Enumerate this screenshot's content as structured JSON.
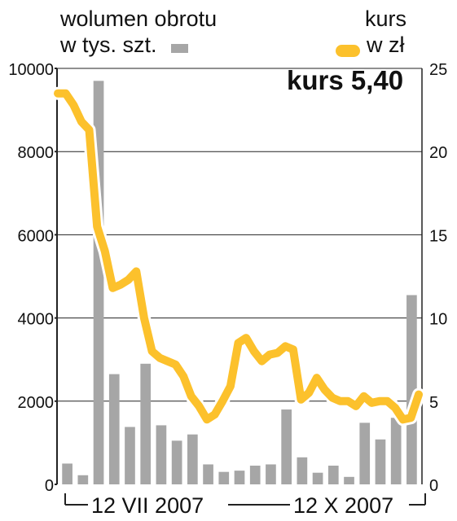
{
  "legend": {
    "volume_line1": "wolumen obrotu",
    "volume_line2": "w tys. szt.",
    "price_line1": "kurs",
    "price_line2": "w zł"
  },
  "current_price_label": "kurs 5,40",
  "chart_data": {
    "type": "bar+line",
    "left_axis": {
      "label": "wolumen obrotu w tys. szt.",
      "ticks": [
        "0",
        "2000",
        "4000",
        "6000",
        "8000",
        "10000"
      ],
      "range": [
        0,
        10000
      ]
    },
    "right_axis": {
      "label": "kurs w zł",
      "ticks": [
        "0",
        "5",
        "10",
        "15",
        "20",
        "25"
      ],
      "range": [
        0,
        25
      ]
    },
    "x_labels": [
      "12 VII 2007",
      "12 X 2007"
    ],
    "grid": "horizontal",
    "volume_series": {
      "name": "wolumen obrotu",
      "color": "#a6a6a6",
      "values": [
        500,
        220,
        9700,
        2650,
        1380,
        2900,
        1420,
        1050,
        1200,
        480,
        300,
        330,
        450,
        480,
        1800,
        650,
        280,
        450,
        180,
        1480,
        1080,
        1600,
        4550
      ]
    },
    "price_series": {
      "name": "kurs",
      "color": "#fcc12c",
      "values": [
        23.5,
        23.5,
        22.8,
        21.8,
        21.3,
        15.5,
        14.0,
        11.8,
        12.0,
        12.3,
        12.8,
        10.0,
        8.0,
        7.6,
        7.4,
        7.2,
        6.5,
        5.3,
        4.7,
        3.9,
        4.2,
        5.0,
        5.9,
        8.5,
        8.8,
        8.0,
        7.4,
        7.8,
        7.9,
        8.3,
        8.1,
        5.1,
        5.5,
        6.4,
        5.7,
        5.2,
        5.0,
        5.0,
        4.7,
        5.3,
        4.9,
        5.0,
        5.0,
        4.6,
        3.9,
        4.0,
        5.4
      ]
    },
    "current_price": 5.4
  }
}
